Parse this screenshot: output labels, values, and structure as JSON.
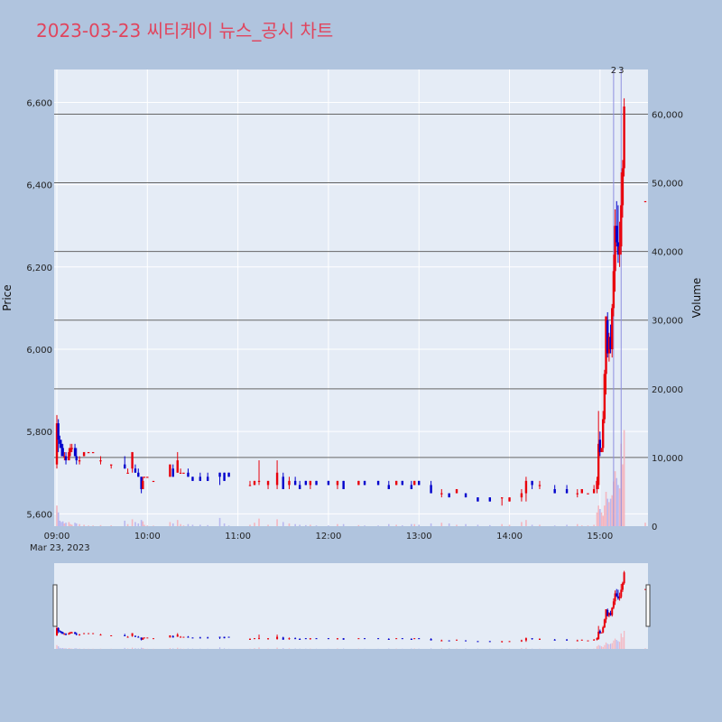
{
  "title": "2023-03-23 씨티케이 뉴스_공시 차트",
  "colors": {
    "background": "#b0c4de",
    "plot_bg": "#e5ecf6",
    "up": "#e8000b",
    "down": "#0000cc",
    "vol_up": "#f4b6c0",
    "vol_down": "#b8b8f0",
    "hline": "#666666",
    "title": "#e0455e"
  },
  "chart_data": {
    "type": "candlestick",
    "title": "2023-03-23 씨티케이 뉴스_공시 차트",
    "ylabel": "Price",
    "y2label": "Volume",
    "ylim": [
      5570,
      6680
    ],
    "y2lim": [
      0,
      66500
    ],
    "x_range": [
      "09:00",
      "15:30"
    ],
    "price_ticks": [
      {
        "v": 5600,
        "label": "5,600"
      },
      {
        "v": 5800,
        "label": "5,800"
      },
      {
        "v": 6000,
        "label": "6,000"
      },
      {
        "v": 6200,
        "label": "6,200"
      },
      {
        "v": 6400,
        "label": "6,400"
      },
      {
        "v": 6600,
        "label": "6,600"
      }
    ],
    "volume_ticks": [
      {
        "v": 0,
        "label": "0"
      },
      {
        "v": 10000,
        "label": "10,000"
      },
      {
        "v": 20000,
        "label": "20,000"
      },
      {
        "v": 30000,
        "label": "30,000"
      },
      {
        "v": 40000,
        "label": "40,000"
      },
      {
        "v": 50000,
        "label": "50,000"
      },
      {
        "v": 60000,
        "label": "60,000"
      }
    ],
    "x_ticks": [
      {
        "t": "09:00",
        "label": "09:00"
      },
      {
        "t": "10:00",
        "label": "10:00"
      },
      {
        "t": "11:00",
        "label": "11:00"
      },
      {
        "t": "12:00",
        "label": "12:00"
      },
      {
        "t": "13:00",
        "label": "13:00"
      },
      {
        "t": "14:00",
        "label": "14:00"
      },
      {
        "t": "15:00",
        "label": "15:00"
      }
    ],
    "date_label": "Mar 23, 2023",
    "volume_hlines": [
      10000,
      20000,
      30000,
      40000,
      50000,
      60000
    ],
    "annotations": [
      {
        "t": "15:09",
        "text": "2"
      },
      {
        "t": "15:14",
        "text": "3"
      }
    ],
    "news_markers": [
      "15:09",
      "15:14"
    ],
    "candles": [
      [
        "09:00",
        5720,
        5840,
        5710,
        5820,
        3000
      ],
      [
        "09:01",
        5820,
        5830,
        5750,
        5780,
        2000
      ],
      [
        "09:02",
        5780,
        5790,
        5760,
        5770,
        800
      ],
      [
        "09:03",
        5770,
        5780,
        5740,
        5760,
        600
      ],
      [
        "09:04",
        5760,
        5770,
        5740,
        5740,
        700
      ],
      [
        "09:05",
        5740,
        5750,
        5730,
        5740,
        400
      ],
      [
        "09:06",
        5740,
        5750,
        5720,
        5730,
        500
      ],
      [
        "09:08",
        5730,
        5760,
        5730,
        5750,
        600
      ],
      [
        "09:09",
        5750,
        5770,
        5740,
        5760,
        300
      ],
      [
        "09:10",
        5760,
        5770,
        5750,
        5760,
        200
      ],
      [
        "09:12",
        5760,
        5770,
        5740,
        5740,
        500
      ],
      [
        "09:13",
        5740,
        5760,
        5720,
        5730,
        400
      ],
      [
        "09:15",
        5730,
        5740,
        5720,
        5730,
        300
      ],
      [
        "09:18",
        5740,
        5750,
        5740,
        5750,
        200
      ],
      [
        "09:21",
        5750,
        5750,
        5750,
        5750,
        100
      ],
      [
        "09:24",
        5750,
        5750,
        5750,
        5750,
        100
      ],
      [
        "09:29",
        5730,
        5740,
        5720,
        5730,
        150
      ],
      [
        "09:36",
        5720,
        5720,
        5710,
        5720,
        120
      ],
      [
        "09:45",
        5720,
        5740,
        5710,
        5710,
        800
      ],
      [
        "09:47",
        5700,
        5710,
        5700,
        5700,
        300
      ],
      [
        "09:50",
        5710,
        5750,
        5700,
        5750,
        1000
      ],
      [
        "09:52",
        5710,
        5720,
        5700,
        5700,
        600
      ],
      [
        "09:54",
        5700,
        5710,
        5690,
        5690,
        400
      ],
      [
        "09:56",
        5690,
        5690,
        5650,
        5660,
        900
      ],
      [
        "09:57",
        5660,
        5690,
        5660,
        5680,
        700
      ],
      [
        "09:58",
        5690,
        5690,
        5690,
        5690,
        200
      ],
      [
        "10:00",
        5690,
        5690,
        5690,
        5690,
        100
      ],
      [
        "10:04",
        5680,
        5680,
        5680,
        5680,
        80
      ],
      [
        "10:15",
        5690,
        5720,
        5690,
        5720,
        600
      ],
      [
        "10:17",
        5710,
        5720,
        5690,
        5690,
        400
      ],
      [
        "10:20",
        5700,
        5750,
        5700,
        5730,
        900
      ],
      [
        "10:22",
        5700,
        5710,
        5700,
        5700,
        300
      ],
      [
        "10:24",
        5700,
        5700,
        5700,
        5700,
        100
      ],
      [
        "10:27",
        5700,
        5710,
        5690,
        5690,
        300
      ],
      [
        "10:30",
        5690,
        5690,
        5680,
        5680,
        200
      ],
      [
        "10:35",
        5690,
        5700,
        5680,
        5680,
        200
      ],
      [
        "10:40",
        5690,
        5700,
        5680,
        5680,
        150
      ],
      [
        "10:48",
        5700,
        5700,
        5670,
        5690,
        1200
      ],
      [
        "10:51",
        5700,
        5700,
        5680,
        5680,
        400
      ],
      [
        "10:54",
        5700,
        5700,
        5690,
        5690,
        100
      ],
      [
        "11:08",
        5670,
        5680,
        5670,
        5670,
        200
      ],
      [
        "11:11",
        5670,
        5680,
        5670,
        5680,
        500
      ],
      [
        "11:14",
        5680,
        5730,
        5670,
        5680,
        1100
      ],
      [
        "11:20",
        5670,
        5680,
        5660,
        5680,
        200
      ],
      [
        "11:26",
        5670,
        5730,
        5660,
        5700,
        1000
      ],
      [
        "11:30",
        5690,
        5700,
        5660,
        5660,
        600
      ],
      [
        "11:34",
        5670,
        5690,
        5660,
        5680,
        400
      ],
      [
        "11:38",
        5680,
        5690,
        5670,
        5670,
        300
      ],
      [
        "11:41",
        5670,
        5680,
        5660,
        5660,
        200
      ],
      [
        "11:45",
        5680,
        5680,
        5670,
        5670,
        150
      ],
      [
        "11:48",
        5670,
        5680,
        5660,
        5680,
        200
      ],
      [
        "11:52",
        5680,
        5680,
        5670,
        5670,
        100
      ],
      [
        "12:00",
        5680,
        5680,
        5670,
        5670,
        100
      ],
      [
        "12:06",
        5670,
        5680,
        5660,
        5680,
        300
      ],
      [
        "12:10",
        5680,
        5680,
        5660,
        5660,
        300
      ],
      [
        "12:20",
        5670,
        5680,
        5670,
        5680,
        150
      ],
      [
        "12:24",
        5680,
        5680,
        5670,
        5670,
        100
      ],
      [
        "12:33",
        5680,
        5680,
        5670,
        5670,
        100
      ],
      [
        "12:40",
        5670,
        5680,
        5660,
        5660,
        300
      ],
      [
        "12:45",
        5670,
        5680,
        5670,
        5680,
        200
      ],
      [
        "12:49",
        5680,
        5680,
        5670,
        5670,
        120
      ],
      [
        "12:55",
        5670,
        5680,
        5660,
        5660,
        300
      ],
      [
        "12:57",
        5670,
        5680,
        5670,
        5680,
        300
      ],
      [
        "13:00",
        5680,
        5680,
        5670,
        5670,
        200
      ],
      [
        "13:08",
        5670,
        5680,
        5650,
        5650,
        400
      ],
      [
        "13:15",
        5650,
        5660,
        5640,
        5650,
        500
      ],
      [
        "13:20",
        5650,
        5650,
        5640,
        5640,
        400
      ],
      [
        "13:25",
        5650,
        5660,
        5650,
        5660,
        200
      ],
      [
        "13:31",
        5650,
        5650,
        5640,
        5640,
        300
      ],
      [
        "13:39",
        5640,
        5640,
        5630,
        5630,
        200
      ],
      [
        "13:47",
        5640,
        5640,
        5630,
        5630,
        150
      ],
      [
        "13:55",
        5640,
        5640,
        5620,
        5640,
        300
      ],
      [
        "14:00",
        5630,
        5640,
        5630,
        5640,
        200
      ],
      [
        "14:08",
        5640,
        5660,
        5630,
        5650,
        600
      ],
      [
        "14:11",
        5650,
        5690,
        5630,
        5680,
        900
      ],
      [
        "14:15",
        5680,
        5680,
        5660,
        5670,
        200
      ],
      [
        "14:20",
        5670,
        5680,
        5660,
        5670,
        200
      ],
      [
        "14:30",
        5660,
        5670,
        5650,
        5650,
        100
      ],
      [
        "14:38",
        5660,
        5670,
        5650,
        5650,
        200
      ],
      [
        "14:45",
        5650,
        5660,
        5640,
        5650,
        300
      ],
      [
        "14:48",
        5650,
        5660,
        5650,
        5660,
        100
      ],
      [
        "14:52",
        5650,
        5650,
        5650,
        5650,
        100
      ],
      [
        "14:56",
        5650,
        5670,
        5650,
        5660,
        200
      ],
      [
        "14:58",
        5660,
        5690,
        5650,
        5680,
        2000
      ],
      [
        "14:59",
        5670,
        5850,
        5660,
        5770,
        3000
      ],
      [
        "15:00",
        5780,
        5800,
        5740,
        5750,
        2500
      ],
      [
        "15:01",
        5750,
        5760,
        5750,
        5760,
        2000
      ],
      [
        "15:02",
        5760,
        5850,
        5750,
        5830,
        1500
      ],
      [
        "15:03",
        5830,
        5950,
        5820,
        5940,
        3000
      ],
      [
        "15:04",
        5940,
        6080,
        5890,
        6080,
        5000
      ],
      [
        "15:05",
        6070,
        6090,
        5980,
        5990,
        4000
      ],
      [
        "15:06",
        5990,
        6040,
        5970,
        6030,
        3500
      ],
      [
        "15:07",
        6030,
        6060,
        5990,
        6000,
        4000
      ],
      [
        "15:08",
        6000,
        6110,
        5980,
        6100,
        4500
      ],
      [
        "15:09",
        6100,
        6230,
        6080,
        6190,
        6500
      ],
      [
        "15:10",
        6190,
        6340,
        6140,
        6300,
        8000
      ],
      [
        "15:11",
        6300,
        6360,
        6250,
        6260,
        7000
      ],
      [
        "15:12",
        6260,
        6350,
        6210,
        6230,
        6000
      ],
      [
        "15:13",
        6230,
        6310,
        6200,
        6250,
        5500
      ],
      [
        "15:14",
        6250,
        6430,
        6230,
        6350,
        12000
      ],
      [
        "15:15",
        6350,
        6460,
        6320,
        6440,
        9000
      ],
      [
        "15:16",
        6440,
        6610,
        6420,
        6590,
        14000
      ],
      [
        "15:30",
        6360,
        6360,
        6360,
        6360,
        500
      ]
    ]
  }
}
